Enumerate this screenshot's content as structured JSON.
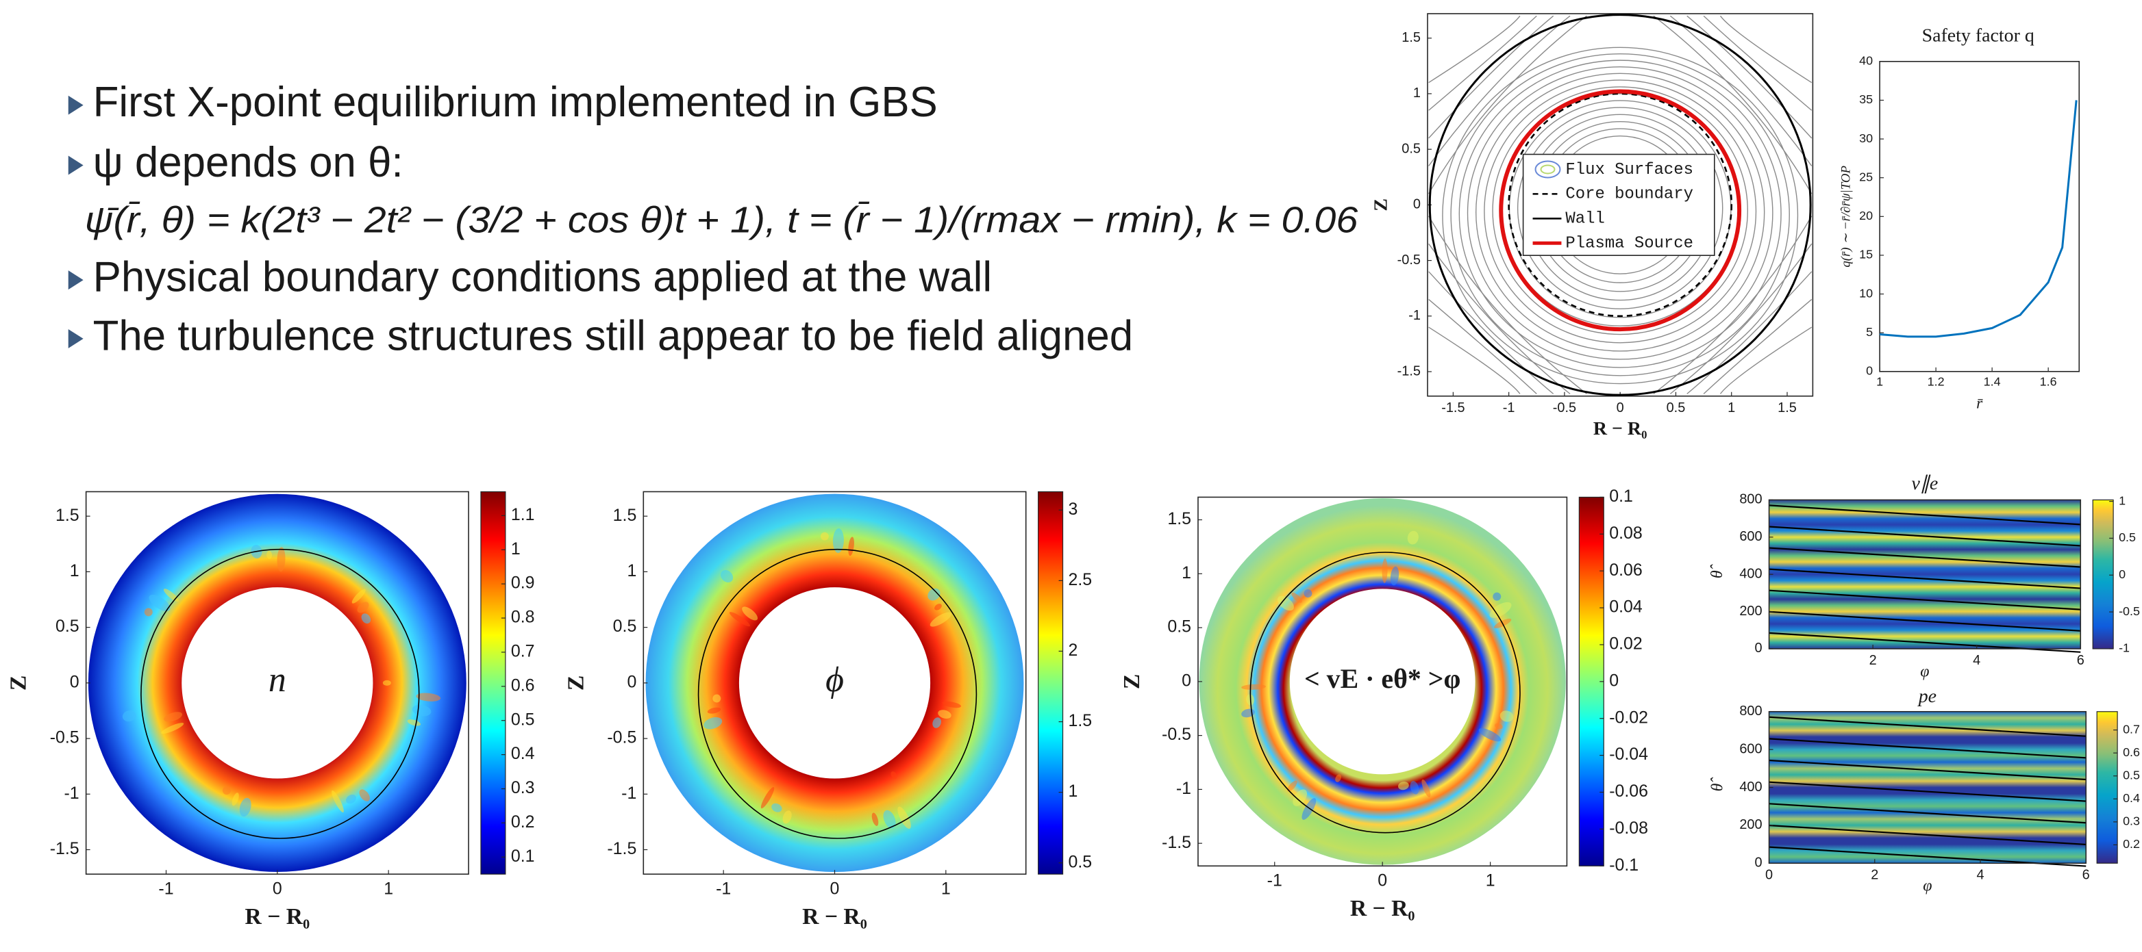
{
  "bullets": [
    "First X-point equilibrium implemented in GBS",
    "ψ depends on θ:",
    "Physical boundary conditions applied at the wall",
    "The turbulence structures still appear to be field aligned"
  ],
  "formula": "ψ̄(r̄, θ) = k(2t³ − 2t² − (3/2 + cos θ)t + 1), t = (r̄ − 1)/(rmax − rmin), k = 0.06",
  "equilibrium": {
    "xlabel": "R − R₀",
    "ylabel": "Z",
    "xlim": [
      -1.73,
      1.73
    ],
    "ylim": [
      -1.72,
      1.72
    ],
    "xticks": [
      -1.5,
      -1,
      -0.5,
      0,
      0.5,
      1,
      1.5
    ],
    "yticks": [
      -1.5,
      -1,
      -0.5,
      0,
      0.5,
      1,
      1.5
    ],
    "legend": [
      "Flux Surfaces",
      "Core boundary",
      "Wall",
      "Plasma Source"
    ]
  },
  "safety_factor": {
    "title": "Safety factor q",
    "ylabel": "q(r̄) ∼ −r̄/∂r̄ψ|TOP",
    "xlabel": "r̄",
    "xlim": [
      1,
      1.71
    ],
    "ylim": [
      0,
      40
    ],
    "xticks": [
      1,
      1.2,
      1.4,
      1.6
    ],
    "yticks": [
      0,
      5,
      10,
      15,
      20,
      25,
      30,
      35,
      40
    ],
    "x": [
      1,
      1.1,
      1.2,
      1.3,
      1.4,
      1.5,
      1.6,
      1.65,
      1.7
    ],
    "y": [
      4.8,
      4.5,
      4.5,
      4.9,
      5.6,
      7.3,
      11.5,
      16,
      35
    ]
  },
  "maps": [
    {
      "label": "n",
      "xlabel": "R − R₀",
      "ylabel": "Z",
      "xlim": [
        -1.72,
        1.72
      ],
      "ylim": [
        -1.72,
        1.72
      ],
      "xticks": [
        -1,
        0,
        1
      ],
      "yticks": [
        -1.5,
        -1,
        -0.5,
        0,
        0.5,
        1,
        1.5
      ],
      "clim": [
        0.05,
        1.17
      ],
      "cticks": [
        0.1,
        0.2,
        0.3,
        0.4,
        0.5,
        0.6,
        0.7,
        0.8,
        0.9,
        1,
        1.1
      ]
    },
    {
      "label": "ϕ",
      "xlabel": "R − R₀",
      "ylabel": "Z",
      "xlim": [
        -1.72,
        1.72
      ],
      "ylim": [
        -1.72,
        1.72
      ],
      "xticks": [
        -1,
        0,
        1
      ],
      "yticks": [
        -1.5,
        -1,
        -0.5,
        0,
        0.5,
        1,
        1.5
      ],
      "clim": [
        0.42,
        3.13
      ],
      "cticks": [
        0.5,
        1,
        1.5,
        2,
        2.5,
        3
      ]
    },
    {
      "label": "< vE · eθ* >φ",
      "xlabel": "R − R₀",
      "ylabel": "Z",
      "xlim": [
        -1.71,
        1.71
      ],
      "ylim": [
        -1.71,
        1.71
      ],
      "xticks": [
        -1,
        0,
        1
      ],
      "yticks": [
        -1.5,
        -1,
        -0.5,
        0,
        0.5,
        1,
        1.5
      ],
      "clim": [
        -0.1,
        0.1
      ],
      "cticks": [
        -0.1,
        -0.08,
        -0.06,
        -0.04,
        -0.02,
        0,
        0.02,
        0.04,
        0.06,
        0.08,
        0.1
      ]
    }
  ],
  "strips": [
    {
      "title": "v∥e",
      "xlabel": "φ",
      "ylabel": "θ̂",
      "xlim": [
        0,
        6
      ],
      "ylim": [
        0,
        800
      ],
      "xticks": [
        2,
        4,
        6
      ],
      "yticks": [
        0,
        200,
        400,
        600,
        800
      ],
      "clim": [
        -1,
        1.02
      ],
      "cticks": [
        -1,
        -0.5,
        0,
        0.5,
        1
      ]
    },
    {
      "title": "pe",
      "xlabel": "φ",
      "ylabel": "θ̂",
      "xlim": [
        0,
        6
      ],
      "ylim": [
        0,
        800
      ],
      "xticks": [
        0,
        2,
        4,
        6
      ],
      "yticks": [
        0,
        200,
        400,
        600,
        800
      ],
      "clim": [
        0.12,
        0.78
      ],
      "cticks": [
        0.2,
        0.3,
        0.4,
        0.5,
        0.6,
        0.7
      ]
    }
  ]
}
